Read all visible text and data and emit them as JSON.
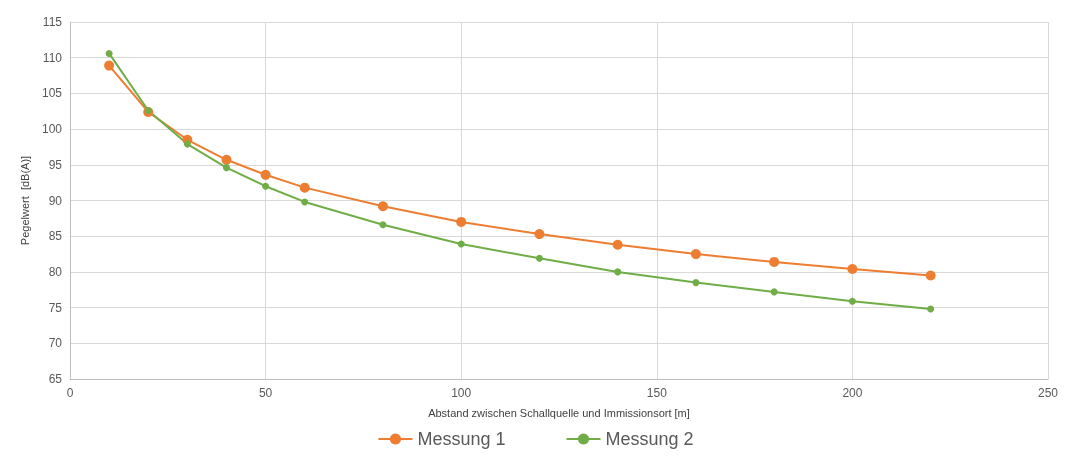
{
  "chart_data": {
    "type": "line",
    "xlabel": "Abstand zwischen Schallquelle und Immissionsort [m]",
    "ylabel": "Pegelwert  [dB(A)]",
    "x": [
      10,
      20,
      30,
      40,
      50,
      60,
      80,
      100,
      120,
      140,
      160,
      180,
      200,
      220
    ],
    "series": [
      {
        "name": "Messung 1",
        "color": "#ed7d31",
        "values": [
          108.9,
          102.4,
          98.5,
          95.7,
          93.6,
          91.8,
          89.2,
          87.0,
          85.3,
          83.8,
          82.5,
          81.4,
          80.4,
          79.5
        ]
      },
      {
        "name": "Messung 2",
        "color": "#70ad47",
        "values": [
          110.6,
          102.6,
          97.9,
          94.6,
          92.0,
          89.8,
          86.6,
          83.9,
          81.9,
          80.0,
          78.5,
          77.2,
          75.9,
          74.8
        ]
      }
    ],
    "xlim": [
      0,
      250
    ],
    "xticks": [
      0,
      50,
      100,
      150,
      200,
      250
    ],
    "ylim": [
      65,
      115
    ],
    "yticks": [
      65,
      70,
      75,
      80,
      85,
      90,
      95,
      100,
      105,
      110,
      115
    ],
    "grid": true,
    "legend": "bottom",
    "marker": "circle",
    "line_style": "solid"
  }
}
